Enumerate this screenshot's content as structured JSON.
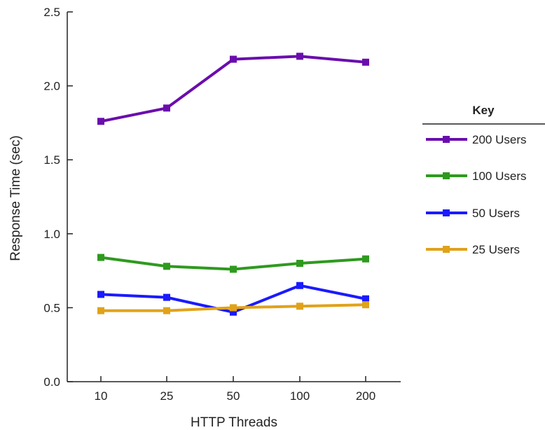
{
  "chart_data": {
    "type": "line",
    "title": "",
    "xlabel": "HTTP Threads",
    "ylabel": "Response Time (sec)",
    "categories": [
      "10",
      "25",
      "50",
      "100",
      "200"
    ],
    "ylim": [
      0,
      2.5
    ],
    "yticks": [
      "0.0",
      "0.5",
      "1.0",
      "1.5",
      "2.0",
      "2.5"
    ],
    "grid": false,
    "legend": {
      "title": "Key",
      "position": "right"
    },
    "series": [
      {
        "name": "200 Users",
        "color": "#6a0dad",
        "values": [
          1.76,
          1.85,
          2.18,
          2.2,
          2.16
        ]
      },
      {
        "name": "100 Users",
        "color": "#2e9a1e",
        "values": [
          0.84,
          0.78,
          0.76,
          0.8,
          0.83
        ]
      },
      {
        "name": "50 Users",
        "color": "#1a1aff",
        "values": [
          0.59,
          0.57,
          0.47,
          0.65,
          0.56
        ]
      },
      {
        "name": "25 Users",
        "color": "#e0a21a",
        "values": [
          0.48,
          0.48,
          0.5,
          0.51,
          0.52
        ]
      }
    ]
  }
}
